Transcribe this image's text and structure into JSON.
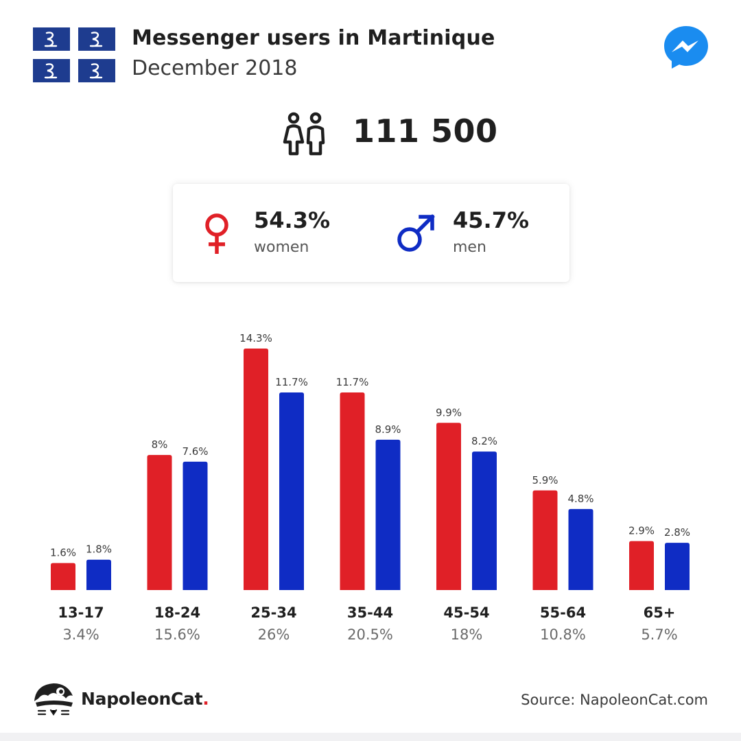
{
  "header": {
    "title": "Messenger users in Martinique",
    "subtitle": "December 2018",
    "flag_icon": "martinique-flag-icon",
    "app_icon": "messenger-icon"
  },
  "total": {
    "icon": "people-icon",
    "value": "111 500"
  },
  "gender": {
    "women": {
      "percent": "54.3%",
      "label": "women",
      "icon": "female-symbol-icon",
      "color": "#e02027"
    },
    "men": {
      "percent": "45.7%",
      "label": "men",
      "icon": "male-symbol-icon",
      "color": "#0f2cc4"
    }
  },
  "chart_data": {
    "type": "bar",
    "categories": [
      "13-17",
      "18-24",
      "25-34",
      "35-44",
      "45-54",
      "55-64",
      "65+"
    ],
    "category_totals": [
      "3.4%",
      "15.6%",
      "26%",
      "20.5%",
      "18%",
      "10.8%",
      "5.7%"
    ],
    "series": [
      {
        "key": "women",
        "color": "#e02027",
        "values": [
          1.6,
          8,
          14.3,
          11.7,
          9.9,
          5.9,
          2.9
        ],
        "labels": [
          "1.6%",
          "8%",
          "14.3%",
          "11.7%",
          "9.9%",
          "5.9%",
          "2.9%"
        ]
      },
      {
        "key": "men",
        "color": "#0f2cc4",
        "values": [
          1.8,
          7.6,
          11.7,
          8.9,
          8.2,
          4.8,
          2.8
        ],
        "labels": [
          "1.8%",
          "7.6%",
          "11.7%",
          "8.9%",
          "8.2%",
          "4.8%",
          "2.8%"
        ]
      }
    ],
    "title": "",
    "xlabel": "",
    "ylabel": "",
    "ylim": [
      0,
      14.3
    ],
    "grid": false,
    "legend": "none"
  },
  "footer": {
    "brand_name": "NapoleonCat",
    "brand_dot": ".",
    "logo_icon": "napoleoncat-logo-icon",
    "source": "Source: NapoleonCat.com"
  }
}
